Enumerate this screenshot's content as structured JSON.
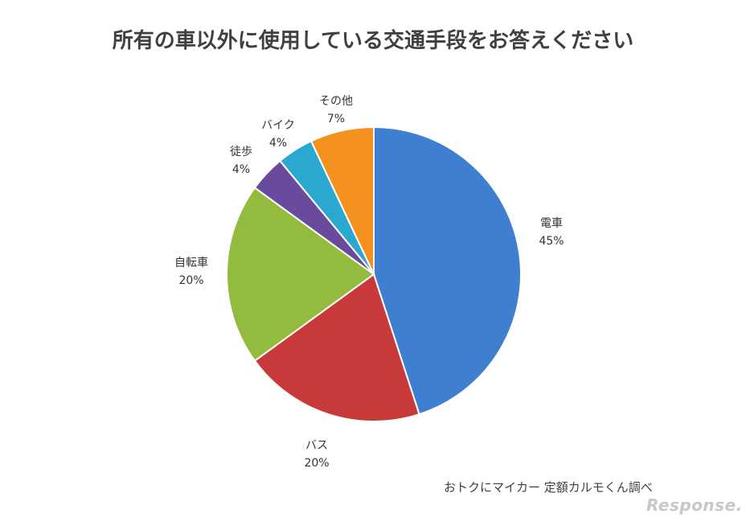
{
  "title": "所有の車以外に使用している交通手段をお答えください",
  "source": "おトクにマイカー 定額カルモくん調べ",
  "watermark": "Response.",
  "chart_data": {
    "type": "pie",
    "title": "所有の車以外に使用している交通手段をお答えください",
    "slices": [
      {
        "label": "電車",
        "value": 45,
        "pct_label": "45%",
        "color": "#3f7fd0"
      },
      {
        "label": "バス",
        "value": 20,
        "pct_label": "20%",
        "color": "#c8393a"
      },
      {
        "label": "自転車",
        "value": 20,
        "pct_label": "20%",
        "color": "#93bb3e"
      },
      {
        "label": "徒歩",
        "value": 4,
        "pct_label": "4%",
        "color": "#6a4a9c"
      },
      {
        "label": "バイク",
        "value": 4,
        "pct_label": "4%",
        "color": "#2aa8d0"
      },
      {
        "label": "その他",
        "value": 7,
        "pct_label": "7%",
        "color": "#f5921f"
      }
    ]
  }
}
